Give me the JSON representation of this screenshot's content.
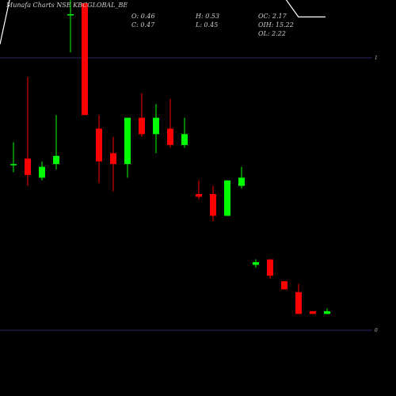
{
  "header": {
    "title": "Munafa Charts NSE KBCGLOBAL_BE",
    "ohlc": [
      "O: 0.46",
      "H: 0.53",
      "C: 0.47",
      "L: 0.45"
    ],
    "oi": [
      "OC: 2.17",
      "OIH: 15.22",
      "OL: 2.22"
    ]
  },
  "chart_data": {
    "type": "candlestick",
    "title": "Munafa Charts NSE KBCGLOBAL_BE",
    "y_tick_labels": [
      "1",
      "0"
    ],
    "grid": "horizontal reference lines",
    "colors": {
      "up": "#00ff00",
      "down": "#ff0000",
      "line": "#ffffff",
      "ref": "#2a2a66"
    },
    "candles": [
      {
        "o": 0.61,
        "h": 0.69,
        "l": 0.58,
        "c": 0.61
      },
      {
        "o": 0.63,
        "h": 0.93,
        "l": 0.53,
        "c": 0.57
      },
      {
        "o": 0.56,
        "h": 0.62,
        "l": 0.55,
        "c": 0.6
      },
      {
        "o": 0.61,
        "h": 0.79,
        "l": 0.59,
        "c": 0.64
      },
      {
        "o": 1.16,
        "h": 1.22,
        "l": 1.02,
        "c": 1.16
      },
      {
        "o": 1.2,
        "h": 1.2,
        "l": 0.79,
        "c": 0.79
      },
      {
        "o": 0.74,
        "h": 0.79,
        "l": 0.54,
        "c": 0.62
      },
      {
        "o": 0.65,
        "h": 0.71,
        "l": 0.51,
        "c": 0.61
      },
      {
        "o": 0.61,
        "h": 0.78,
        "l": 0.56,
        "c": 0.78
      },
      {
        "o": 0.78,
        "h": 0.87,
        "l": 0.71,
        "c": 0.72
      },
      {
        "o": 0.72,
        "h": 0.83,
        "l": 0.65,
        "c": 0.78
      },
      {
        "o": 0.74,
        "h": 0.85,
        "l": 0.67,
        "c": 0.68
      },
      {
        "o": 0.68,
        "h": 0.78,
        "l": 0.67,
        "c": 0.72
      },
      {
        "o": 0.5,
        "h": 0.55,
        "l": 0.48,
        "c": 0.49
      },
      {
        "o": 0.5,
        "h": 0.53,
        "l": 0.4,
        "c": 0.42
      },
      {
        "o": 0.42,
        "h": 0.55,
        "l": 0.42,
        "c": 0.55
      },
      {
        "o": 0.53,
        "h": 0.6,
        "l": 0.52,
        "c": 0.56
      },
      {
        "o": 0.24,
        "h": 0.26,
        "l": 0.23,
        "c": 0.25
      },
      {
        "o": 0.26,
        "h": 0.26,
        "l": 0.19,
        "c": 0.2
      },
      {
        "o": 0.18,
        "h": 0.18,
        "l": 0.15,
        "c": 0.15
      },
      {
        "o": 0.14,
        "h": 0.17,
        "l": 0.06,
        "c": 0.06
      },
      {
        "o": 0.07,
        "h": 0.07,
        "l": 0.06,
        "c": 0.06
      },
      {
        "o": 0.06,
        "h": 0.08,
        "l": 0.06,
        "c": 0.07
      }
    ],
    "overlay_line": [
      1.05,
      1.28,
      1.43,
      1.42,
      1.43,
      1.44,
      1.55,
      1.48,
      1.42,
      1.41,
      1.48,
      1.44,
      1.47,
      1.43,
      1.45,
      1.36,
      1.33,
      1.37,
      1.37,
      1.28,
      1.24,
      1.22,
      1.15,
      1.15,
      1.15
    ]
  }
}
